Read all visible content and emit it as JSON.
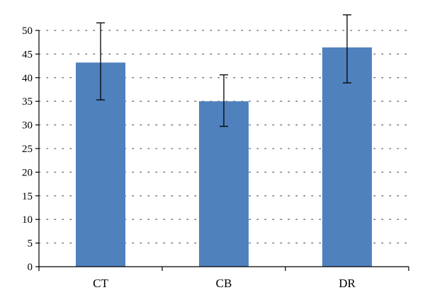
{
  "chart_data": {
    "type": "bar",
    "title": "",
    "xlabel": "",
    "ylabel": "",
    "categories": [
      "CT",
      "CB",
      "DR"
    ],
    "values": [
      43.2,
      35.0,
      46.4
    ],
    "error_bars": [
      {
        "low": 35.3,
        "high": 51.6
      },
      {
        "low": 29.7,
        "high": 40.6
      },
      {
        "low": 38.9,
        "high": 53.3
      }
    ],
    "ylim": [
      0,
      50
    ],
    "yticks": [
      0,
      5,
      10,
      15,
      20,
      25,
      30,
      35,
      40,
      45,
      50
    ],
    "grid": true,
    "legend": "none",
    "colors": {
      "bar": "#4f81bd",
      "grid": "#7f7f7f",
      "axis": "#000000",
      "error": "#000000"
    }
  }
}
